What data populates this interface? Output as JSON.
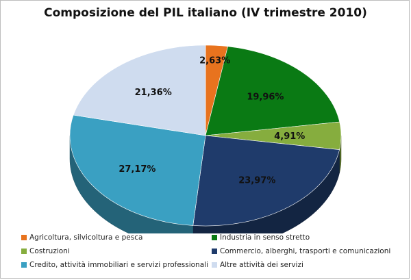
{
  "chart_data": {
    "type": "pie",
    "title": "Composizione del PIL italiano (IV trimestre 2010)",
    "labels": [
      "Agricoltura, silvicoltura e pesca",
      "Industria in senso stretto",
      "Costruzioni",
      "Commercio, alberghi, trasporti e comunicazioni",
      "Credito, attività immobiliari e servizi professionali",
      "Altre attività dei servizi"
    ],
    "values": [
      2.63,
      19.96,
      4.91,
      23.97,
      27.17,
      21.36
    ],
    "value_labels": [
      "2,63%",
      "19,96%",
      "4,91%",
      "23,97%",
      "27,17%",
      "21,36%"
    ],
    "colors": [
      "#e8731e",
      "#0a7a14",
      "#86ad3e",
      "#1f3b6b",
      "#3aa0c2",
      "#cfdcef"
    ],
    "legend_position": "bottom",
    "style": "3d"
  }
}
